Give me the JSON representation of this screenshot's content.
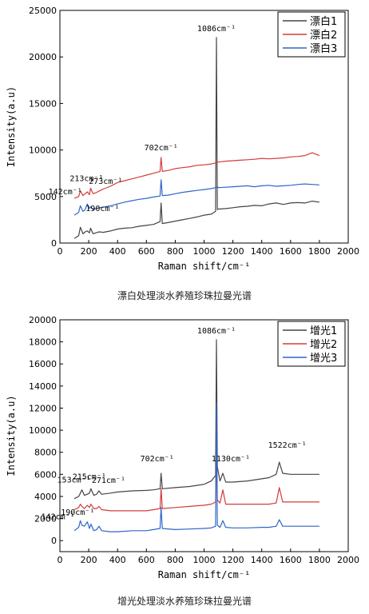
{
  "chart_data": [
    {
      "type": "line",
      "caption": "漂白处理淡水养殖珍珠拉曼光谱",
      "xlabel": "Raman shift/cm⁻¹",
      "ylabel": "Intensity(a.u)",
      "xlim": [
        0,
        2000
      ],
      "ylim": [
        0,
        25000
      ],
      "xticks": [
        0,
        200,
        400,
        600,
        800,
        1000,
        1200,
        1400,
        1600,
        1800,
        2000
      ],
      "yticks": [
        0,
        5000,
        10000,
        15000,
        20000,
        25000
      ],
      "grid": false,
      "legend_position": "top-right",
      "series": [
        {
          "name": "漂白1",
          "color": "#444444",
          "x": [
            100,
            130,
            142,
            160,
            175,
            190,
            205,
            213,
            230,
            250,
            273,
            300,
            350,
            400,
            450,
            500,
            550,
            600,
            650,
            695,
            702,
            710,
            750,
            800,
            850,
            900,
            950,
            1000,
            1050,
            1080,
            1086,
            1092,
            1100,
            1150,
            1200,
            1250,
            1300,
            1350,
            1400,
            1450,
            1500,
            1550,
            1600,
            1650,
            1700,
            1750,
            1800
          ],
          "y": [
            500,
            800,
            1700,
            1000,
            1200,
            1300,
            1100,
            1600,
            1000,
            1100,
            1200,
            1150,
            1300,
            1500,
            1600,
            1650,
            1800,
            1900,
            2000,
            2300,
            4300,
            2100,
            2200,
            2350,
            2500,
            2650,
            2800,
            3000,
            3100,
            3400,
            22100,
            3600,
            3650,
            3700,
            3800,
            3900,
            3950,
            4050,
            4000,
            4200,
            4300,
            4150,
            4300,
            4350,
            4300,
            4500,
            4400
          ]
        },
        {
          "name": "漂白2",
          "color": "#d23c3c",
          "x": [
            100,
            130,
            142,
            160,
            175,
            190,
            205,
            213,
            230,
            250,
            273,
            300,
            350,
            400,
            450,
            500,
            550,
            600,
            650,
            695,
            702,
            710,
            750,
            800,
            850,
            900,
            950,
            1000,
            1050,
            1080,
            1086,
            1092,
            1100,
            1150,
            1200,
            1250,
            1300,
            1350,
            1400,
            1450,
            1500,
            1550,
            1600,
            1650,
            1700,
            1750,
            1800
          ],
          "y": [
            4800,
            5000,
            5600,
            5100,
            5300,
            5500,
            5200,
            5900,
            5300,
            5400,
            5600,
            5800,
            6100,
            6500,
            6700,
            6900,
            7100,
            7300,
            7500,
            7700,
            9200,
            7700,
            7800,
            8000,
            8100,
            8200,
            8350,
            8400,
            8500,
            8600,
            8650,
            8700,
            8700,
            8800,
            8850,
            8900,
            8950,
            9000,
            9100,
            9050,
            9100,
            9150,
            9250,
            9300,
            9400,
            9700,
            9400
          ]
        },
        {
          "name": "漂白3",
          "color": "#2e66c8",
          "x": [
            100,
            130,
            142,
            160,
            175,
            190,
            205,
            213,
            230,
            250,
            273,
            300,
            350,
            400,
            450,
            500,
            550,
            600,
            650,
            695,
            702,
            710,
            750,
            800,
            850,
            900,
            950,
            1000,
            1050,
            1080,
            1086,
            1092,
            1100,
            1150,
            1200,
            1250,
            1300,
            1350,
            1400,
            1450,
            1500,
            1550,
            1600,
            1650,
            1700,
            1750,
            1800
          ],
          "y": [
            3000,
            3300,
            4000,
            3400,
            3600,
            4200,
            3700,
            3900,
            3600,
            3700,
            3800,
            3850,
            4000,
            4200,
            4400,
            4550,
            4700,
            4800,
            4950,
            5050,
            6800,
            5100,
            5150,
            5300,
            5450,
            5550,
            5650,
            5750,
            5850,
            5950,
            6000,
            6050,
            5950,
            6000,
            6050,
            6100,
            6150,
            6050,
            6150,
            6200,
            6100,
            6150,
            6200,
            6300,
            6350,
            6300,
            6250
          ]
        }
      ],
      "annotations": [
        {
          "text": "1086cm⁻¹",
          "x": 1086,
          "y": 22100
        },
        {
          "text": "702cm⁻¹",
          "x": 702,
          "y": 9200
        },
        {
          "text": "142cm⁻¹",
          "x": 142,
          "y": 5600
        },
        {
          "text": "213cm⁻¹",
          "x": 213,
          "y": 5900
        },
        {
          "text": "273cm⁻¹",
          "x": 273,
          "y": 5600
        },
        {
          "text": "190cm⁻¹",
          "x": 190,
          "y": 4200
        }
      ]
    },
    {
      "type": "line",
      "caption": "增光处理淡水养殖珍珠拉曼光谱",
      "xlabel": "Raman shift/cm⁻¹",
      "ylabel": "Intensity(a.u)",
      "xlim": [
        0,
        2000
      ],
      "ylim": [
        -1000,
        20000
      ],
      "xticks": [
        0,
        200,
        400,
        600,
        800,
        1000,
        1200,
        1400,
        1600,
        1800,
        2000
      ],
      "yticks": [
        0,
        2000,
        4000,
        6000,
        8000,
        10000,
        12000,
        14000,
        16000,
        18000,
        20000
      ],
      "grid": false,
      "legend_position": "top-right",
      "series": [
        {
          "name": "增光1",
          "color": "#444444",
          "x": [
            100,
            130,
            142,
            153,
            170,
            190,
            205,
            215,
            235,
            255,
            271,
            290,
            350,
            400,
            500,
            600,
            650,
            695,
            702,
            710,
            800,
            900,
            1000,
            1050,
            1080,
            1086,
            1092,
            1110,
            1130,
            1150,
            1200,
            1300,
            1400,
            1450,
            1500,
            1522,
            1545,
            1600,
            1700,
            1800
          ],
          "y": [
            3800,
            4000,
            4300,
            4600,
            4100,
            4200,
            4300,
            4700,
            4100,
            4200,
            4500,
            4200,
            4300,
            4400,
            4500,
            4550,
            4600,
            4700,
            6100,
            4700,
            4800,
            4900,
            5100,
            5400,
            5900,
            18200,
            6700,
            5400,
            6100,
            5300,
            5300,
            5400,
            5600,
            5700,
            6000,
            7100,
            6100,
            6000,
            6000,
            6000
          ]
        },
        {
          "name": "增光2",
          "color": "#d23c3c",
          "x": [
            100,
            130,
            142,
            153,
            170,
            190,
            205,
            215,
            235,
            255,
            271,
            290,
            350,
            400,
            500,
            600,
            650,
            695,
            702,
            710,
            800,
            900,
            1000,
            1050,
            1080,
            1086,
            1092,
            1110,
            1130,
            1150,
            1200,
            1300,
            1400,
            1450,
            1500,
            1522,
            1545,
            1600,
            1700,
            1800
          ],
          "y": [
            2800,
            3000,
            3300,
            3100,
            2900,
            3200,
            3000,
            3300,
            2900,
            2900,
            3100,
            2800,
            2700,
            2700,
            2700,
            2700,
            2800,
            2900,
            4700,
            2900,
            3000,
            3100,
            3200,
            3300,
            3500,
            9500,
            3700,
            3400,
            4600,
            3300,
            3300,
            3300,
            3300,
            3300,
            3400,
            4800,
            3500,
            3500,
            3500,
            3500
          ]
        },
        {
          "name": "增光3",
          "color": "#2e66c8",
          "x": [
            100,
            130,
            142,
            153,
            170,
            190,
            205,
            215,
            235,
            255,
            271,
            290,
            350,
            400,
            500,
            600,
            650,
            695,
            702,
            710,
            800,
            900,
            1000,
            1050,
            1080,
            1086,
            1092,
            1110,
            1130,
            1150,
            1200,
            1300,
            1400,
            1450,
            1500,
            1522,
            1545,
            1600,
            1700,
            1800
          ],
          "y": [
            900,
            1200,
            1800,
            1400,
            1300,
            1700,
            1100,
            1500,
            900,
            1000,
            1300,
            900,
            800,
            800,
            900,
            900,
            1000,
            1100,
            3000,
            1100,
            1000,
            1050,
            1100,
            1150,
            1300,
            12500,
            1400,
            1200,
            1800,
            1200,
            1150,
            1150,
            1200,
            1200,
            1300,
            1900,
            1300,
            1300,
            1300,
            1300
          ]
        }
      ],
      "annotations": [
        {
          "text": "1086cm⁻¹",
          "x": 1086,
          "y": 18200
        },
        {
          "text": "702cm⁻¹",
          "x": 702,
          "y": 6100
        },
        {
          "text": "1130cm⁻¹",
          "x": 1130,
          "y": 6100
        },
        {
          "text": "1522cm⁻¹",
          "x": 1522,
          "y": 7100
        },
        {
          "text": "153cm⁻¹",
          "x": 153,
          "y": 4600
        },
        {
          "text": "215cm⁻¹",
          "x": 215,
          "y": 4700
        },
        {
          "text": "271cm⁻¹",
          "x": 271,
          "y": 4500
        },
        {
          "text": "190cm⁻¹",
          "x": 190,
          "y": 3200
        },
        {
          "text": "142cm⁻¹",
          "x": 142,
          "y": 1800
        }
      ]
    }
  ]
}
